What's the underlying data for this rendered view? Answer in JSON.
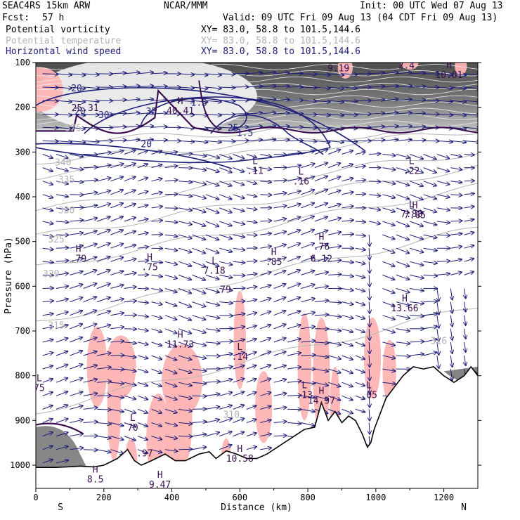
{
  "header": {
    "model": "SEAC4RS 15km ARW",
    "source": "NCAR/MMM",
    "init": "Init: 00 UTC Wed 07 Aug 13",
    "fcst_label": "Fcst:",
    "fcst_value": "57 h",
    "valid": "Valid: 09 UTC Fri 09 Aug 13 (04 CDT Fri 09 Aug 13)"
  },
  "fields": [
    {
      "name": "Potential vorticity",
      "xy": "XY=  83.0, 58.8 to 101.5,144.6",
      "color": "#3a1050"
    },
    {
      "name": "Potential temperature",
      "xy": "XY=  83.0, 58.8 to 101.5,144.6",
      "color": "#b4b4b4"
    },
    {
      "name": "Horizontal wind speed",
      "xy": "XY=  83.0, 58.8 to 101.5,144.6",
      "color": "#1e1e78"
    }
  ],
  "colors": {
    "wind": "#1e1e78",
    "theta": "#b4b4b4",
    "pv": "#3a1050",
    "moist": "#ffb4b4",
    "terrain": "#000000"
  },
  "chart_data": {
    "type": "cross-section",
    "xlabel": "Distance (km)",
    "ylabel": "Pressure (hPa)",
    "xlim": [
      0,
      1300
    ],
    "ylim": [
      1050,
      100
    ],
    "xticks": [
      0,
      200,
      400,
      600,
      800,
      1000,
      1200
    ],
    "yticks": [
      100,
      200,
      300,
      400,
      500,
      600,
      700,
      800,
      900,
      1000
    ],
    "left_end_label": "S",
    "right_end_label": "N",
    "terrain": {
      "x": [
        0,
        30,
        60,
        90,
        110,
        130,
        150,
        170,
        200,
        240,
        270,
        290,
        310,
        340,
        380,
        410,
        440,
        480,
        510,
        530,
        560,
        590,
        620,
        650,
        680,
        710,
        740,
        770,
        790,
        820,
        840,
        860,
        880,
        900,
        920,
        940,
        960,
        975,
        985,
        995,
        1010,
        1030,
        1050,
        1080,
        1110,
        1140,
        1170,
        1200,
        1230,
        1260,
        1280,
        1300
      ],
      "p": [
        1005,
        1005,
        1005,
        1004,
        1003,
        1002,
        1003,
        1004,
        1000,
        985,
        965,
        990,
        1000,
        990,
        975,
        990,
        990,
        975,
        970,
        985,
        968,
        975,
        985,
        985,
        975,
        960,
        945,
        930,
        920,
        915,
        860,
        900,
        880,
        905,
        890,
        900,
        930,
        960,
        950,
        920,
        890,
        850,
        830,
        800,
        780,
        785,
        780,
        800,
        815,
        800,
        780,
        800
      ]
    },
    "wind_isotachs": [
      {
        "value": "20",
        "labels": [
          [
            130,
            210
          ],
          [
            120,
            158
          ],
          [
            325,
            283
          ]
        ]
      },
      {
        "value": "25",
        "labels": [
          [
            580,
            247
          ]
        ]
      },
      {
        "value": "30",
        "labels": [
          [
            200,
            218
          ]
        ]
      },
      {
        "value": "35",
        "labels": [
          [
            340,
            210
          ]
        ]
      },
      {
        "value": "1.5",
        "labels": [
          [
            480,
            190
          ],
          [
            615,
            258
          ]
        ]
      }
    ],
    "theta_labels": [
      {
        "text": "375",
        "x": 110,
        "p": 247
      },
      {
        "text": "340",
        "x": 80,
        "p": 324
      },
      {
        "text": "335",
        "x": 90,
        "p": 362
      },
      {
        "text": "330",
        "x": 90,
        "p": 431
      },
      {
        "text": "325",
        "x": 60,
        "p": 496
      },
      {
        "text": "320",
        "x": 45,
        "p": 573
      },
      {
        "text": "315",
        "x": 60,
        "p": 688
      },
      {
        "text": "316",
        "x": 1185,
        "p": 723
      },
      {
        "text": "310",
        "x": 575,
        "p": 888
      }
    ],
    "extrema": [
      {
        "kind": "H",
        "value": "40.41",
        "x": 425,
        "p": 208
      },
      {
        "kind": "H",
        "value": "9.19",
        "x": 890,
        "p": 113
      },
      {
        "kind": "H",
        "value": "10.81",
        "x": 1215,
        "p": 128
      },
      {
        "kind": "",
        "value": "2.4",
        "x": 1090,
        "p": 107
      },
      {
        "kind": "",
        "value": "25.31",
        "x": 145,
        "p": 202
      },
      {
        "kind": "L",
        "value": ".11",
        "x": 645,
        "p": 343
      },
      {
        "kind": "L",
        "value": ".16",
        "x": 780,
        "p": 366
      },
      {
        "kind": "L",
        "value": ".22",
        "x": 1105,
        "p": 343
      },
      {
        "kind": "L",
        "value": "7.88",
        "x": 1105,
        "p": 439
      },
      {
        "kind": "H",
        "value": "7.65",
        "x": 1115,
        "p": 442
      },
      {
        "kind": "H",
        "value": ".76",
        "x": 840,
        "p": 512
      },
      {
        "kind": "",
        "value": "6.12",
        "x": 840,
        "p": 539
      },
      {
        "kind": "H",
        "value": ".79",
        "x": 125,
        "p": 539
      },
      {
        "kind": "H",
        "value": ".75",
        "x": 335,
        "p": 558
      },
      {
        "kind": "L",
        "value": "7.18",
        "x": 525,
        "p": 566
      },
      {
        "kind": "H",
        "value": ".85",
        "x": 700,
        "p": 546
      },
      {
        "kind": "",
        "value": ".79",
        "x": 550,
        "p": 608
      },
      {
        "kind": "H",
        "value": "13.66",
        "x": 1085,
        "p": 650
      },
      {
        "kind": "H",
        "value": "11.73",
        "x": 425,
        "p": 731
      },
      {
        "kind": "L",
        "value": ".14",
        "x": 600,
        "p": 758
      },
      {
        "kind": "L",
        "value": "75",
        "x": 10,
        "p": 828
      },
      {
        "kind": "L",
        "value": ".13",
        "x": 790,
        "p": 844
      },
      {
        "kind": "H",
        "value": "14.97",
        "x": 840,
        "p": 856
      },
      {
        "kind": "L",
        "value": ".05",
        "x": 980,
        "p": 844
      },
      {
        "kind": "L",
        "value": "70",
        "x": 285,
        "p": 917
      },
      {
        "kind": "",
        "value": ".97",
        "x": 320,
        "p": 974
      },
      {
        "kind": "H",
        "value": "10.58",
        "x": 600,
        "p": 986
      },
      {
        "kind": "H",
        "value": "8.5",
        "x": 175,
        "p": 1032
      },
      {
        "kind": "H",
        "value": "9.47",
        "x": 365,
        "p": 1044
      }
    ]
  }
}
